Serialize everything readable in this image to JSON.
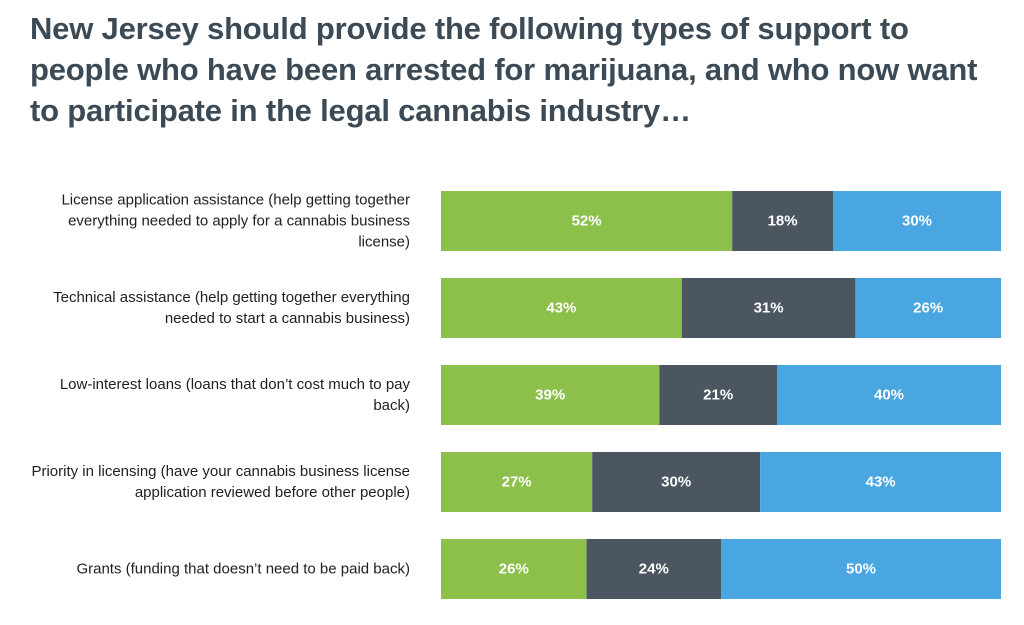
{
  "chart_data": {
    "type": "bar",
    "orientation": "horizontal",
    "stacked": true,
    "normalized_100": true,
    "title": "New Jersey should provide the following types of support to people who have been arrested for marijuana, and who now want to participate in the legal cannabis industry…",
    "categories": [
      "License application assistance (help getting together everything needed to apply for a cannabis business license)",
      "Technical assistance (help getting together everything needed to start a cannabis business)",
      "Low-interest loans (loans that don’t cost much to pay back)",
      "Priority in licensing (have your cannabis business license application reviewed before other people)",
      "Grants (funding that doesn’t need to be paid back)"
    ],
    "series": [
      {
        "name": "segment-1",
        "color": "#8cc04a",
        "values": [
          52,
          43,
          39,
          27,
          26
        ]
      },
      {
        "name": "segment-2",
        "color": "#4b5661",
        "values": [
          18,
          31,
          21,
          30,
          24
        ]
      },
      {
        "name": "segment-3",
        "color": "#4aa6e0",
        "values": [
          30,
          26,
          40,
          43,
          50
        ]
      }
    ],
    "value_suffix": "%",
    "legend": "none",
    "grid": false
  }
}
